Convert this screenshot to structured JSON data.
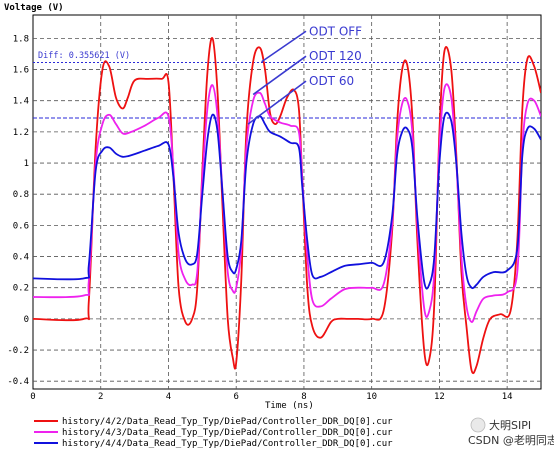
{
  "chart_data": {
    "type": "line",
    "ylabel": "Voltage (V)",
    "xlabel": "Time (ns)",
    "xlim": [
      0,
      15
    ],
    "ylim": [
      -0.45,
      1.95
    ],
    "x_ticks": [
      0,
      2,
      4,
      6,
      8,
      10,
      12,
      14
    ],
    "y_ticks": [
      -0.4,
      -0.2,
      0,
      0.2,
      0.4,
      0.6,
      0.8,
      1,
      1.2,
      1.4,
      1.6,
      1.8
    ],
    "grid": true,
    "measurement": {
      "label": "Diff: 0.355621 (V)",
      "level_high": 1.645,
      "level_low": 1.289
    },
    "annotations": [
      {
        "text": "ODT OFF",
        "text_at": [
          8.15,
          1.82
        ],
        "arrow_to": [
          6.75,
          1.65
        ]
      },
      {
        "text": "ODT 120",
        "text_at": [
          8.15,
          1.66
        ],
        "arrow_to": [
          6.5,
          1.44
        ]
      },
      {
        "text": "ODT 60",
        "text_at": [
          8.15,
          1.5
        ],
        "arrow_to": [
          6.35,
          1.25
        ]
      }
    ],
    "legend_position": "bottom",
    "series": [
      {
        "name": "history/4/2/Data_Read_Typ_Typ/DiePad/Controller_DDR_DQ[0].cur",
        "color": "#ee1111",
        "x": [
          0,
          1.5,
          1.65,
          1.85,
          2.05,
          2.25,
          2.45,
          2.65,
          2.8,
          3.0,
          3.4,
          3.8,
          4.0,
          4.15,
          4.3,
          4.5,
          4.7,
          4.85,
          5.0,
          5.15,
          5.3,
          5.45,
          5.6,
          5.75,
          5.9,
          6.0,
          6.15,
          6.3,
          6.5,
          6.7,
          6.85,
          7.0,
          7.15,
          7.3,
          7.5,
          7.7,
          7.85,
          7.95,
          8.1,
          8.25,
          8.5,
          8.8,
          9.0,
          9.3,
          9.6,
          10.0,
          10.35,
          10.6,
          10.75,
          10.9,
          11.05,
          11.2,
          11.35,
          11.55,
          11.7,
          11.85,
          12.0,
          12.15,
          12.35,
          12.5,
          12.65,
          12.8,
          12.95,
          13.1,
          13.3,
          13.5,
          13.8,
          14.1,
          14.3,
          14.45,
          14.6,
          14.8,
          15.0
        ],
        "y": [
          0,
          0,
          0.12,
          1.1,
          1.6,
          1.62,
          1.42,
          1.35,
          1.42,
          1.53,
          1.54,
          1.54,
          1.52,
          0.9,
          0.2,
          -0.02,
          0.0,
          0.2,
          0.95,
          1.58,
          1.8,
          1.45,
          0.7,
          0.0,
          -0.25,
          -0.28,
          0.25,
          1.2,
          1.65,
          1.74,
          1.6,
          1.32,
          1.25,
          1.3,
          1.42,
          1.47,
          1.35,
          0.9,
          0.2,
          -0.05,
          -0.12,
          -0.02,
          0.0,
          0.0,
          0.0,
          0.0,
          0.05,
          0.55,
          1.25,
          1.6,
          1.63,
          1.3,
          0.5,
          -0.2,
          -0.26,
          0.1,
          1.2,
          1.72,
          1.6,
          1.05,
          0.3,
          -0.05,
          -0.33,
          -0.3,
          -0.12,
          0.0,
          0.03,
          0.05,
          0.5,
          1.35,
          1.67,
          1.62,
          1.45
        ]
      },
      {
        "name": "history/4/3/Data_Read_Typ_Typ/DiePad/Controller_DDR_DQ[0].cur",
        "color": "#ee22ee",
        "x": [
          0,
          1.5,
          1.65,
          1.85,
          2.05,
          2.25,
          2.45,
          2.65,
          2.9,
          3.3,
          3.7,
          4.0,
          4.15,
          4.3,
          4.5,
          4.7,
          4.85,
          5.0,
          5.15,
          5.3,
          5.45,
          5.6,
          5.75,
          5.9,
          6.0,
          6.15,
          6.3,
          6.5,
          6.7,
          6.85,
          7.0,
          7.3,
          7.6,
          7.85,
          7.95,
          8.1,
          8.25,
          8.5,
          8.8,
          9.2,
          9.6,
          10.0,
          10.35,
          10.6,
          10.75,
          10.9,
          11.05,
          11.2,
          11.35,
          11.55,
          11.7,
          11.85,
          12.0,
          12.15,
          12.35,
          12.5,
          12.65,
          12.8,
          12.95,
          13.1,
          13.3,
          13.6,
          14.0,
          14.3,
          14.45,
          14.6,
          14.8,
          15.0
        ],
        "y": [
          0.14,
          0.15,
          0.25,
          1.0,
          1.25,
          1.31,
          1.25,
          1.19,
          1.2,
          1.24,
          1.29,
          1.3,
          0.95,
          0.42,
          0.25,
          0.22,
          0.3,
          0.9,
          1.35,
          1.5,
          1.3,
          0.8,
          0.3,
          0.18,
          0.2,
          0.45,
          1.1,
          1.4,
          1.45,
          1.38,
          1.3,
          1.26,
          1.24,
          1.2,
          0.9,
          0.4,
          0.12,
          0.08,
          0.13,
          0.19,
          0.2,
          0.2,
          0.22,
          0.6,
          1.15,
          1.38,
          1.4,
          1.2,
          0.6,
          0.07,
          0.05,
          0.3,
          1.1,
          1.48,
          1.42,
          1.0,
          0.4,
          0.08,
          -0.02,
          0.05,
          0.13,
          0.15,
          0.17,
          0.3,
          1.1,
          1.38,
          1.4,
          1.3
        ]
      },
      {
        "name": "history/4/4/Data_Read_Typ_Typ/DiePad/Controller_DDR_DQ[0].cur",
        "color": "#1111dd",
        "x": [
          0,
          1.5,
          1.65,
          1.85,
          2.05,
          2.25,
          2.45,
          2.65,
          2.9,
          3.3,
          3.7,
          4.0,
          4.15,
          4.3,
          4.5,
          4.7,
          4.85,
          5.0,
          5.15,
          5.3,
          5.45,
          5.6,
          5.75,
          5.9,
          6.0,
          6.15,
          6.3,
          6.5,
          6.7,
          6.85,
          7.0,
          7.3,
          7.6,
          7.85,
          7.95,
          8.1,
          8.25,
          8.5,
          8.8,
          9.2,
          9.6,
          10.0,
          10.35,
          10.6,
          10.75,
          10.9,
          11.05,
          11.2,
          11.35,
          11.55,
          11.7,
          11.85,
          12.0,
          12.15,
          12.35,
          12.5,
          12.65,
          12.8,
          12.95,
          13.1,
          13.3,
          13.6,
          14.0,
          14.3,
          14.45,
          14.6,
          14.8,
          15.0
        ],
        "y": [
          0.26,
          0.26,
          0.35,
          0.95,
          1.08,
          1.1,
          1.06,
          1.04,
          1.05,
          1.08,
          1.11,
          1.12,
          0.9,
          0.55,
          0.38,
          0.35,
          0.42,
          0.8,
          1.15,
          1.31,
          1.2,
          0.8,
          0.4,
          0.3,
          0.32,
          0.5,
          1.0,
          1.25,
          1.3,
          1.25,
          1.2,
          1.17,
          1.13,
          1.1,
          0.85,
          0.5,
          0.28,
          0.27,
          0.3,
          0.34,
          0.35,
          0.36,
          0.36,
          0.65,
          1.05,
          1.2,
          1.22,
          1.1,
          0.65,
          0.24,
          0.22,
          0.4,
          1.0,
          1.3,
          1.27,
          1.0,
          0.55,
          0.28,
          0.2,
          0.22,
          0.27,
          0.3,
          0.31,
          0.45,
          1.05,
          1.22,
          1.22,
          1.15
        ]
      }
    ]
  },
  "watermark": {
    "brand": "大明SIPI",
    "caption": "CSDN @老明同志"
  }
}
